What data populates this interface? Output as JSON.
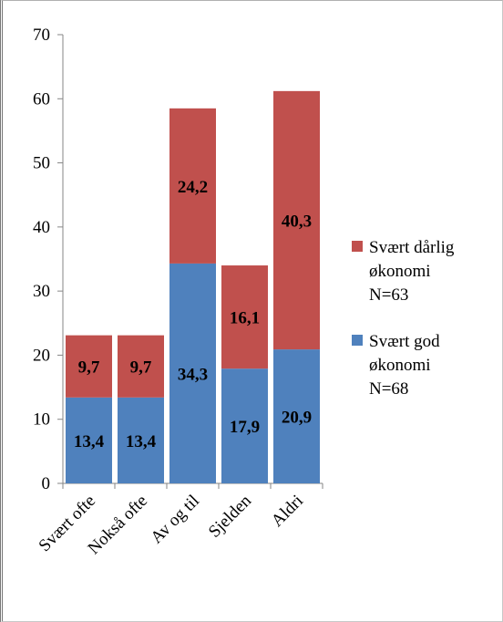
{
  "chart_data": {
    "type": "bar",
    "stacked": true,
    "categories": [
      "Svært ofte",
      "Nokså ofte",
      "Av og til",
      "Sjelden",
      "Aldri"
    ],
    "series": [
      {
        "name": "Svært god økonomi N=68",
        "legend_lines": [
          "Svært god",
          "økonomi",
          "N=68"
        ],
        "color": "#4f81bd",
        "values": [
          13.4,
          13.4,
          34.3,
          17.9,
          20.9
        ],
        "labels": [
          "13,4",
          "13,4",
          "34,3",
          "17,9",
          "20,9"
        ]
      },
      {
        "name": "Svært dårlig økonomi N=63",
        "legend_lines": [
          "Svært dårlig",
          "økonomi",
          "N=63"
        ],
        "color": "#c0504d",
        "values": [
          9.7,
          9.7,
          24.2,
          16.1,
          40.3
        ],
        "labels": [
          "9,7",
          "9,7",
          "24,2",
          "16,1",
          "40,3"
        ]
      }
    ],
    "ylim": [
      0,
      70
    ],
    "yticks": [
      "0",
      "10",
      "20",
      "30",
      "40",
      "50",
      "60",
      "70"
    ],
    "grid": false,
    "legend_position": "right"
  }
}
